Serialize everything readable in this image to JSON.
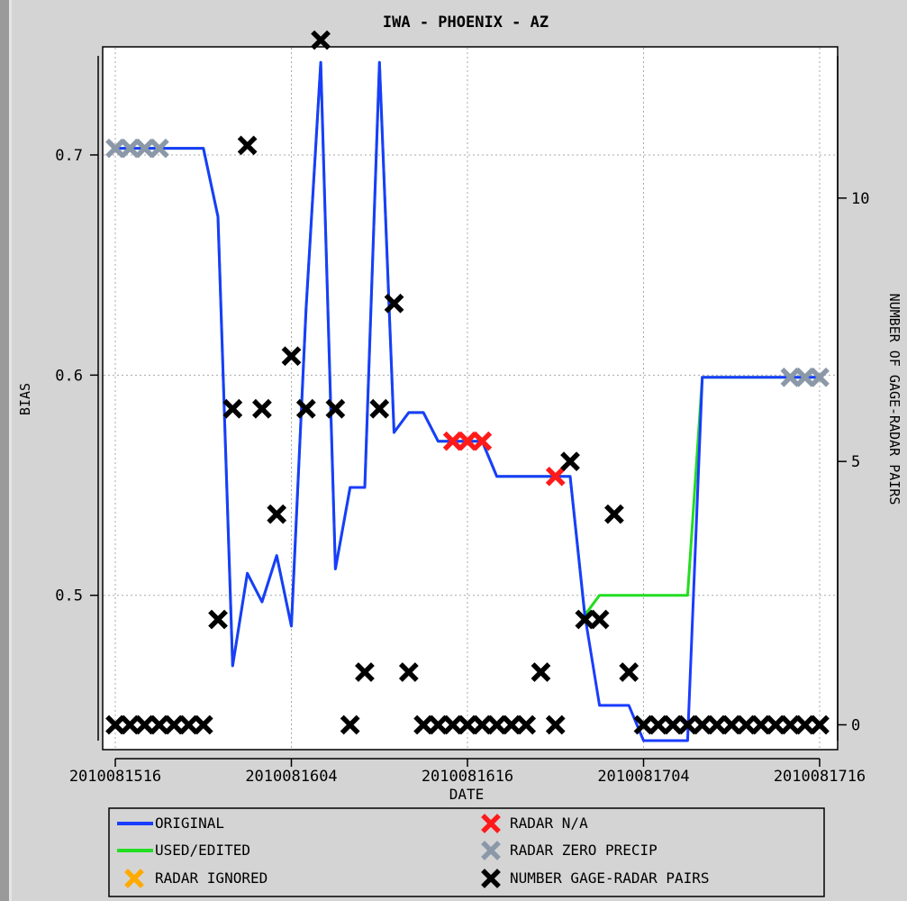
{
  "chart_data": {
    "type": "line",
    "title": "IWA - PHOENIX - AZ",
    "xlabel": "DATE",
    "ylabel": "BIAS",
    "y2label": "NUMBER OF GAGE-RADAR PAIRS",
    "x_range": [
      0,
      48
    ],
    "ylim": [
      0.434,
      0.745
    ],
    "y2lim": [
      -0.3,
      12.7
    ],
    "x_ticks": [
      {
        "x": 0,
        "label": "2010081516"
      },
      {
        "x": 12,
        "label": "2010081604"
      },
      {
        "x": 24,
        "label": "2010081616"
      },
      {
        "x": 36,
        "label": "2010081704"
      },
      {
        "x": 48,
        "label": "2010081716"
      }
    ],
    "y_ticks": [
      {
        "value": 0.5,
        "label": "0.5"
      },
      {
        "value": 0.6,
        "label": "0.6"
      },
      {
        "value": 0.7,
        "label": "0.7"
      }
    ],
    "y2_ticks": [
      {
        "value": 0,
        "label": "0"
      },
      {
        "value": 5,
        "label": "5"
      },
      {
        "value": 10,
        "label": "10"
      }
    ],
    "grid": true,
    "legend_position": "bottom",
    "series": [
      {
        "name": "ORIGINAL",
        "color": "#1a3cff",
        "x": [
          0,
          1,
          2,
          3,
          4,
          5,
          6,
          7,
          8,
          9,
          10,
          11,
          12,
          13,
          14,
          15,
          16,
          17,
          18,
          19,
          20,
          21,
          22,
          23,
          24,
          25,
          26,
          27,
          28,
          29,
          30,
          31,
          32,
          33,
          34,
          35,
          36,
          37,
          38,
          39,
          40,
          41,
          42,
          43,
          44,
          45,
          46,
          47,
          48
        ],
        "values": [
          0.703,
          0.703,
          0.703,
          0.703,
          0.703,
          0.703,
          0.703,
          0.672,
          0.468,
          0.51,
          0.497,
          0.518,
          0.486,
          0.63,
          0.742,
          0.512,
          0.549,
          0.549,
          0.742,
          0.574,
          0.583,
          0.583,
          0.57,
          0.57,
          0.57,
          0.57,
          0.554,
          0.554,
          0.554,
          0.554,
          0.554,
          0.554,
          0.491,
          0.45,
          0.45,
          0.45,
          0.434,
          0.434,
          0.434,
          0.434,
          0.599,
          0.599,
          0.599,
          0.599,
          0.599,
          0.599,
          0.599,
          0.599,
          0.599
        ]
      },
      {
        "name": "USED/EDITED",
        "color": "#22dd22",
        "x": [
          0,
          1,
          2,
          3,
          4,
          5,
          6,
          7,
          8,
          9,
          10,
          11,
          12,
          13,
          14,
          15,
          16,
          17,
          18,
          19,
          20,
          21,
          22,
          23,
          24,
          25,
          26,
          27,
          28,
          29,
          30,
          31,
          32,
          33,
          34,
          35,
          36,
          37,
          38,
          39,
          40,
          41,
          42,
          43,
          44,
          45,
          46,
          47,
          48
        ],
        "values": [
          0.703,
          0.703,
          0.703,
          0.703,
          0.703,
          0.703,
          0.703,
          0.672,
          0.468,
          0.51,
          0.497,
          0.518,
          0.486,
          0.63,
          0.742,
          0.512,
          0.549,
          0.549,
          0.742,
          0.574,
          0.583,
          0.583,
          0.57,
          0.57,
          0.57,
          0.57,
          0.554,
          0.554,
          0.554,
          0.554,
          0.554,
          0.554,
          0.491,
          0.5,
          0.5,
          0.5,
          0.5,
          0.5,
          0.5,
          0.5,
          0.599,
          0.599,
          0.599,
          0.599,
          0.599,
          0.599,
          0.599,
          0.599,
          0.599
        ]
      }
    ],
    "markers": [
      {
        "name": "RADAR N/A",
        "color": "#ff1a1a",
        "x": [
          23,
          24,
          25,
          30
        ],
        "values": [
          0.57,
          0.57,
          0.57,
          0.554
        ]
      },
      {
        "name": "RADAR ZERO PRECIP",
        "color": "#8a98a8",
        "x": [
          0,
          1,
          2,
          3,
          46,
          47,
          48
        ],
        "values": [
          0.703,
          0.703,
          0.703,
          0.703,
          0.599,
          0.599,
          0.599
        ]
      },
      {
        "name": "RADAR IGNORED",
        "color": "#ffaa00",
        "x": [],
        "values": []
      },
      {
        "name": "NUMBER GAGE-RADAR PAIRS",
        "color": "#000000",
        "axis": "right",
        "x": [
          0,
          1,
          2,
          3,
          4,
          5,
          6,
          7,
          8,
          9,
          10,
          11,
          12,
          13,
          14,
          15,
          16,
          17,
          18,
          19,
          20,
          21,
          22,
          23,
          24,
          25,
          26,
          27,
          28,
          29,
          30,
          31,
          32,
          33,
          34,
          35,
          36,
          37,
          38,
          39,
          40,
          41,
          42,
          43,
          44,
          45,
          46,
          47,
          48
        ],
        "values": [
          0,
          0,
          0,
          0,
          0,
          0,
          0,
          2,
          6,
          11,
          6,
          4,
          7,
          6,
          13,
          6,
          0,
          1,
          6,
          8,
          1,
          0,
          0,
          0,
          0,
          0,
          0,
          0,
          0,
          1,
          0,
          5,
          2,
          2,
          4,
          1,
          0,
          0,
          0,
          0,
          0,
          0,
          0,
          0,
          0,
          0,
          0,
          0,
          0
        ]
      }
    ]
  },
  "legend": {
    "original": "ORIGINAL",
    "used_edited": "USED/EDITED",
    "radar_ignored": "RADAR IGNORED",
    "radar_na": "RADAR N/A",
    "radar_zero": "RADAR ZERO PRECIP",
    "pairs": "NUMBER GAGE-RADAR PAIRS"
  }
}
